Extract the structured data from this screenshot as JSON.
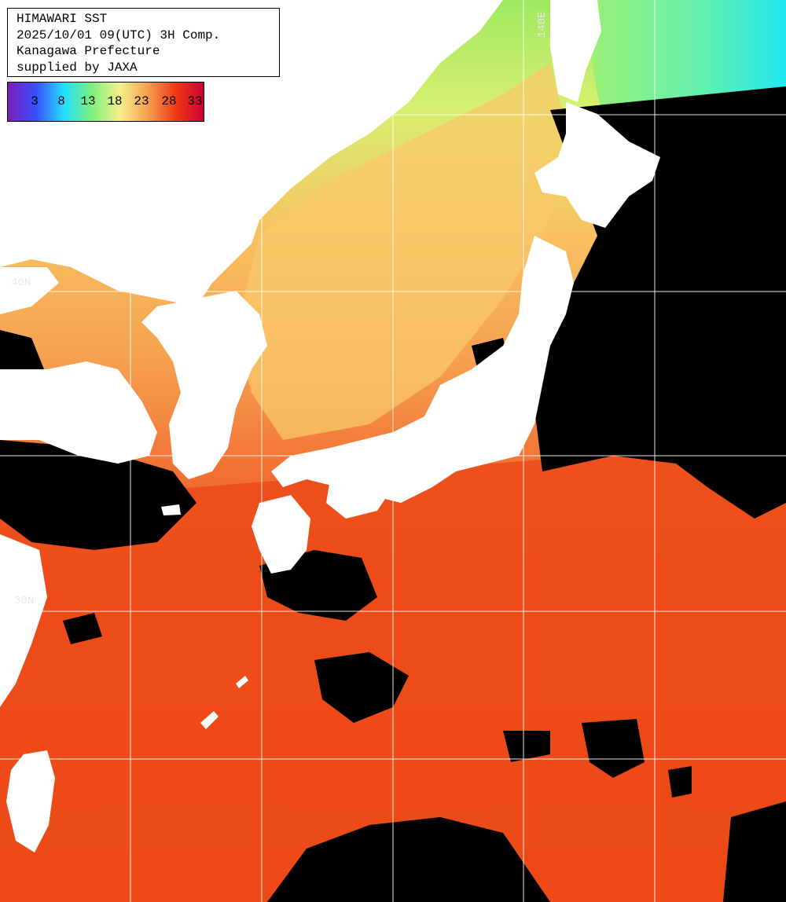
{
  "header": {
    "line1": "HIMAWARI SST",
    "line2": "2025/10/01 09(UTC) 3H Comp.",
    "line3": "Kanagawa Prefecture",
    "line4": "supplied by JAXA"
  },
  "legend": {
    "ticks": [
      "3",
      "8",
      "13",
      "18",
      "23",
      "28",
      "33"
    ],
    "colors": [
      "#7a1fb4",
      "#3a4cff",
      "#20e0ff",
      "#7cf07c",
      "#f7f08a",
      "#f6a050",
      "#ee3b15",
      "#cc0033"
    ]
  },
  "grid_labels": {
    "lon": "140E",
    "lat_north": "40N",
    "lat_south": "30N"
  },
  "colors": {
    "land": "#ffffff",
    "cloud": "#000000",
    "grid": "#ffffff",
    "sst_warm": "#ee4a18",
    "sst_mid": "#f6b058",
    "sst_cool": "#b8f070"
  }
}
